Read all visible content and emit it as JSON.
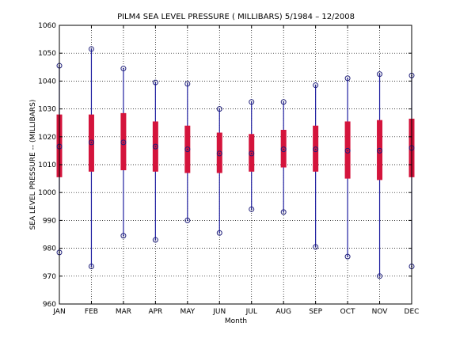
{
  "chart_data": {
    "type": "box",
    "title": "PILM4  SEA LEVEL PRESSURE ( MILLIBARS) 5/1984 – 12/2008",
    "xlabel": "Month",
    "ylabel": "SEA LEVEL PRESSURE -- (MILLIBARS)",
    "ylim": [
      960,
      1060
    ],
    "yticks": [
      960,
      970,
      980,
      990,
      1000,
      1010,
      1020,
      1030,
      1040,
      1050,
      1060
    ],
    "grid": true,
    "colors": {
      "whisker": "#1f1fa0",
      "box": "#d4143c",
      "marker": "#1f1f7a"
    },
    "categories": [
      "JAN",
      "FEB",
      "MAR",
      "APR",
      "MAY",
      "JUN",
      "JUL",
      "AUG",
      "SEP",
      "OCT",
      "NOV",
      "DEC"
    ],
    "series": [
      {
        "category": "JAN",
        "min": 978.5,
        "q1": 1005.5,
        "median": 1016.5,
        "q3": 1028,
        "max": 1045.5
      },
      {
        "category": "FEB",
        "min": 973.5,
        "q1": 1007.5,
        "median": 1018,
        "q3": 1028,
        "max": 1051.5
      },
      {
        "category": "MAR",
        "min": 984.5,
        "q1": 1008,
        "median": 1018,
        "q3": 1028.5,
        "max": 1044.5
      },
      {
        "category": "APR",
        "min": 983,
        "q1": 1007.5,
        "median": 1016.5,
        "q3": 1025.5,
        "max": 1039.5
      },
      {
        "category": "MAY",
        "min": 990,
        "q1": 1007,
        "median": 1015.5,
        "q3": 1024,
        "max": 1039
      },
      {
        "category": "JUN",
        "min": 985.5,
        "q1": 1007,
        "median": 1014,
        "q3": 1021.5,
        "max": 1030
      },
      {
        "category": "JUL",
        "min": 994,
        "q1": 1007.5,
        "median": 1014,
        "q3": 1021,
        "max": 1032.5
      },
      {
        "category": "AUG",
        "min": 993,
        "q1": 1009,
        "median": 1015.5,
        "q3": 1022.5,
        "max": 1032.5
      },
      {
        "category": "SEP",
        "min": 980.5,
        "q1": 1007.5,
        "median": 1015.5,
        "q3": 1024,
        "max": 1038.5
      },
      {
        "category": "OCT",
        "min": 977,
        "q1": 1005,
        "median": 1015,
        "q3": 1025.5,
        "max": 1041
      },
      {
        "category": "NOV",
        "min": 970,
        "q1": 1004.5,
        "median": 1015,
        "q3": 1026,
        "max": 1042.5
      },
      {
        "category": "DEC",
        "min": 973.5,
        "q1": 1005.5,
        "median": 1016,
        "q3": 1026.5,
        "max": 1042
      }
    ]
  }
}
